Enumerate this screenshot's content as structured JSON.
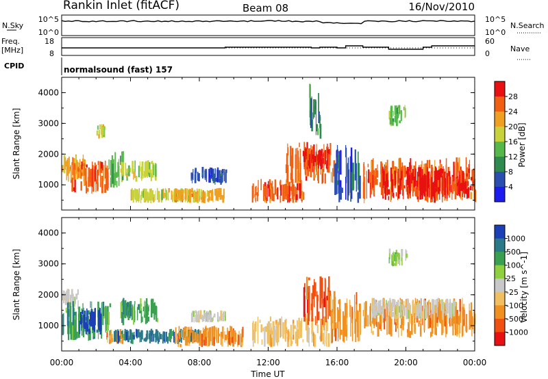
{
  "header": {
    "station": "Rankin Inlet (fitACF)",
    "beam": "Beam 08",
    "date": "16/Nov/2010"
  },
  "top_panels": {
    "nsky_label": "N.Sky",
    "nsky_top": "10^5",
    "nsky_bottom": "10^0",
    "nsearch_label": "N.Search",
    "nsearch_top": "10^5",
    "nsearch_bottom": "10^0",
    "freq_label": "Freq.",
    "freq_unit": "[MHz]",
    "freq_top": "18",
    "freq_bottom": "8",
    "nave_label": "Nave",
    "nave_top": "60",
    "nave_bottom": "0",
    "cpid_label": "CPID",
    "cpid_text": "normalsound (fast) 157"
  },
  "chart_data": [
    {
      "type": "heatmap",
      "title": "",
      "xlabel": "",
      "ylabel": "Slant Range [km]",
      "xlim": [
        "00:00",
        "00:00"
      ],
      "ylim": [
        180,
        4500
      ],
      "y_ticks": [
        "1000",
        "2000",
        "3000",
        "4000"
      ],
      "colorbar_label": "Power [dB]",
      "colorbar_ticks": [
        "4",
        "8",
        "12",
        "16",
        "20",
        "24",
        "28"
      ],
      "colors": [
        "#1c1cf0",
        "#2a4fb0",
        "#2f8a4f",
        "#56b84a",
        "#c8d23a",
        "#f0a020",
        "#f06010",
        "#e81010"
      ],
      "regions": [
        {
          "x0": 0.0,
          "x1": 1.3,
          "y0": 1100,
          "y1": 2000,
          "level": 5
        },
        {
          "x0": 0.5,
          "x1": 2.7,
          "y0": 700,
          "y1": 1800,
          "level": 6
        },
        {
          "x0": 2.7,
          "x1": 3.6,
          "y0": 900,
          "y1": 2100,
          "level": 3
        },
        {
          "x0": 3.4,
          "x1": 5.5,
          "y0": 1100,
          "y1": 1800,
          "level": 4
        },
        {
          "x0": 4.0,
          "x1": 8.0,
          "y0": 400,
          "y1": 900,
          "level": 4
        },
        {
          "x0": 6.5,
          "x1": 9.5,
          "y0": 400,
          "y1": 900,
          "level": 5
        },
        {
          "x0": 7.5,
          "x1": 9.5,
          "y0": 1000,
          "y1": 1600,
          "level": 1
        },
        {
          "x0": 11.0,
          "x1": 14.0,
          "y0": 400,
          "y1": 1200,
          "level": 6
        },
        {
          "x0": 13.0,
          "x1": 15.8,
          "y0": 1000,
          "y1": 2400,
          "level": 6
        },
        {
          "x0": 14.0,
          "x1": 15.5,
          "y0": 1500,
          "y1": 2200,
          "level": 7
        },
        {
          "x0": 15.8,
          "x1": 17.3,
          "y0": 400,
          "y1": 2300,
          "level": 1
        },
        {
          "x0": 17.5,
          "x1": 24.0,
          "y0": 400,
          "y1": 1900,
          "level": 6
        },
        {
          "x0": 18.5,
          "x1": 23.8,
          "y0": 500,
          "y1": 1600,
          "level": 7
        },
        {
          "x0": 2.0,
          "x1": 2.5,
          "y0": 2500,
          "y1": 3000,
          "level": 4
        },
        {
          "x0": 14.3,
          "x1": 15.0,
          "y0": 2500,
          "y1": 4400,
          "level": 2
        },
        {
          "x0": 19.0,
          "x1": 20.0,
          "y0": 2900,
          "y1": 3600,
          "level": 3
        }
      ]
    },
    {
      "type": "heatmap",
      "title": "",
      "xlabel": "Time UT",
      "ylabel": "Slant Range [km]",
      "xlim": [
        "00:00",
        "00:00"
      ],
      "ylim": [
        180,
        4500
      ],
      "x_ticks": [
        "00:00",
        "04:00",
        "08:00",
        "12:00",
        "16:00",
        "20:00",
        "00:00"
      ],
      "y_ticks": [
        "1000",
        "2000",
        "3000",
        "4000"
      ],
      "colorbar_label": "Velocity [m s^-1]",
      "colorbar_ticks": [
        "1000",
        "500",
        "100",
        "25",
        "-25",
        "-100",
        "-500",
        "-1000"
      ],
      "colors": [
        "#1c3fb8",
        "#2a7a8a",
        "#3aa050",
        "#8fd040",
        "#c8c8c8",
        "#f0c060",
        "#f09020",
        "#f05010",
        "#e81010"
      ],
      "regions": [
        {
          "x0": 0.0,
          "x1": 1.0,
          "y0": 1500,
          "y1": 2200,
          "level": 4
        },
        {
          "x0": 0.0,
          "x1": 2.8,
          "y0": 500,
          "y1": 1800,
          "level": 2
        },
        {
          "x0": 1.0,
          "x1": 2.3,
          "y0": 700,
          "y1": 1600,
          "level": 0
        },
        {
          "x0": 2.5,
          "x1": 3.5,
          "y0": 400,
          "y1": 900,
          "level": 6
        },
        {
          "x0": 3.4,
          "x1": 5.6,
          "y0": 1000,
          "y1": 1900,
          "level": 2
        },
        {
          "x0": 3.0,
          "x1": 8.0,
          "y0": 400,
          "y1": 900,
          "level": 1
        },
        {
          "x0": 6.5,
          "x1": 10.5,
          "y0": 300,
          "y1": 1000,
          "level": 6
        },
        {
          "x0": 7.5,
          "x1": 9.5,
          "y0": 1100,
          "y1": 1500,
          "level": 4
        },
        {
          "x0": 11.0,
          "x1": 15.5,
          "y0": 300,
          "y1": 1300,
          "level": 5
        },
        {
          "x0": 14.0,
          "x1": 15.8,
          "y0": 1000,
          "y1": 2600,
          "level": 7
        },
        {
          "x0": 15.6,
          "x1": 17.3,
          "y0": 400,
          "y1": 2100,
          "level": 6
        },
        {
          "x0": 17.5,
          "x1": 24.0,
          "y0": 600,
          "y1": 1900,
          "level": 6
        },
        {
          "x0": 18.0,
          "x1": 23.0,
          "y0": 1200,
          "y1": 1900,
          "level": 4
        },
        {
          "x0": 19.0,
          "x1": 20.0,
          "y0": 2900,
          "y1": 3500,
          "level": 3
        }
      ]
    }
  ]
}
